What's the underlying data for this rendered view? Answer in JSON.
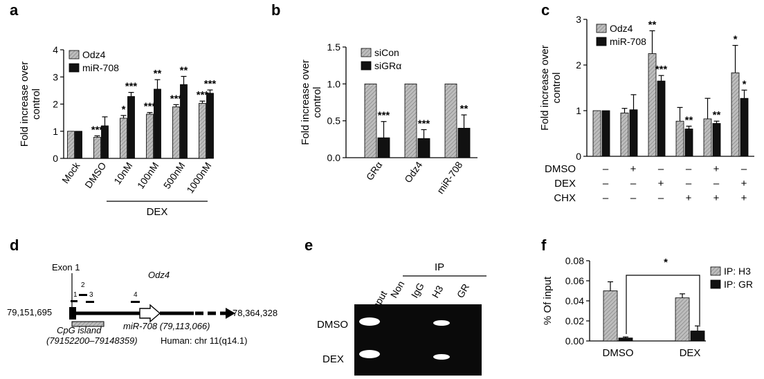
{
  "colors": {
    "odz4": "#bdbdbd",
    "mir708": "#111111",
    "hatch": "#7a7a7a",
    "gel": "#0a0a0a",
    "band": "#ffffff"
  },
  "panels": {
    "a": "a",
    "b": "b",
    "c": "c",
    "d": "d",
    "e": "e",
    "f": "f"
  },
  "chart_data": [
    {
      "id": "a",
      "type": "bar",
      "ylabel": [
        "Fold increase over",
        "control"
      ],
      "ylim": [
        0,
        4
      ],
      "yticks": [
        "0",
        "1",
        "2",
        "3",
        "4"
      ],
      "categories": [
        "Mock",
        "DMSO",
        "10nM",
        "100nM",
        "500nM",
        "1000nM"
      ],
      "group_label": "DEX",
      "series": [
        {
          "name": "Odz4",
          "values": [
            1.0,
            0.78,
            1.48,
            1.63,
            1.9,
            2.03
          ],
          "errors": [
            0.0,
            0.05,
            0.1,
            0.06,
            0.08,
            0.08
          ],
          "stars": [
            "",
            "***",
            "*",
            "***",
            "***",
            "***"
          ]
        },
        {
          "name": "miR-708",
          "values": [
            1.0,
            1.2,
            2.28,
            2.55,
            2.72,
            2.4
          ],
          "errors": [
            0.0,
            0.33,
            0.15,
            0.35,
            0.3,
            0.12
          ],
          "stars": [
            "",
            "",
            "***",
            "**",
            "**",
            "***"
          ]
        }
      ]
    },
    {
      "id": "b",
      "type": "bar",
      "ylabel": [
        "Fold increase over",
        "control"
      ],
      "ylim": [
        0,
        1.5
      ],
      "yticks": [
        "0.0",
        "0.5",
        "1.0",
        "1.5"
      ],
      "categories": [
        "GRα",
        "Odz4",
        "miR-708"
      ],
      "series": [
        {
          "name": "siCon",
          "values": [
            1.0,
            1.0,
            1.0
          ],
          "errors": [
            0,
            0,
            0
          ],
          "stars": [
            "",
            "",
            ""
          ]
        },
        {
          "name": "siGRα",
          "values": [
            0.27,
            0.26,
            0.4
          ],
          "errors": [
            0.22,
            0.12,
            0.18
          ],
          "stars": [
            "***",
            "***",
            "**"
          ]
        }
      ]
    },
    {
      "id": "c",
      "type": "bar",
      "ylabel": [
        "Fold increase over",
        "control"
      ],
      "ylim": [
        0,
        3
      ],
      "yticks": [
        "0",
        "1",
        "2",
        "3"
      ],
      "series": [
        {
          "name": "Odz4",
          "values": [
            1.0,
            0.95,
            2.25,
            0.77,
            0.82,
            1.83
          ],
          "errors": [
            0,
            0.1,
            0.5,
            0.3,
            0.45,
            0.6
          ],
          "stars": [
            "",
            "",
            "**",
            "",
            "",
            "*"
          ]
        },
        {
          "name": "miR-708",
          "values": [
            1.0,
            1.02,
            1.65,
            0.6,
            0.72,
            1.27
          ],
          "errors": [
            0,
            0.33,
            0.12,
            0.06,
            0.05,
            0.18
          ],
          "stars": [
            "",
            "",
            "***",
            "**",
            "**",
            "*"
          ]
        }
      ],
      "treatments": [
        {
          "name": "DMSO",
          "marks": [
            "–",
            "+",
            "–",
            "–",
            "+",
            "–"
          ]
        },
        {
          "name": "DEX",
          "marks": [
            "–",
            "–",
            "+",
            "–",
            "–",
            "+"
          ]
        },
        {
          "name": "CHX",
          "marks": [
            "–",
            "–",
            "–",
            "+",
            "+",
            "+"
          ]
        }
      ]
    },
    {
      "id": "f",
      "type": "bar",
      "ylabel": [
        "% Of input"
      ],
      "ylim": [
        0,
        0.08
      ],
      "yticks": [
        "0.00",
        "0.02",
        "0.04",
        "0.06",
        "0.08"
      ],
      "categories": [
        "DMSO",
        "DEX"
      ],
      "series": [
        {
          "name": "IP: H3",
          "values": [
            0.05,
            0.043
          ],
          "errors": [
            0.009,
            0.004
          ]
        },
        {
          "name": "IP: GR",
          "values": [
            0.003,
            0.01
          ],
          "errors": [
            0.001,
            0.005
          ]
        }
      ],
      "comparison_star": "*"
    }
  ],
  "panel_d": {
    "exon_label": "Exon 1",
    "gene_label": "Odz4",
    "left_coord": "79,151,695",
    "right_coord": "78,364,328",
    "cpg_label": "CpG island",
    "cpg_range": "(79152200–79148359)",
    "mir_label": "miR-708 (79,113,066)",
    "species_label": "Human: chr 11(q14.1)",
    "primers": [
      "1",
      "2",
      "3",
      "4"
    ]
  },
  "panel_e": {
    "ip_label": "IP",
    "lanes": [
      "2% Input",
      "Non",
      "IgG",
      "H3",
      "GR"
    ],
    "rows": [
      "DMSO",
      "DEX"
    ]
  }
}
